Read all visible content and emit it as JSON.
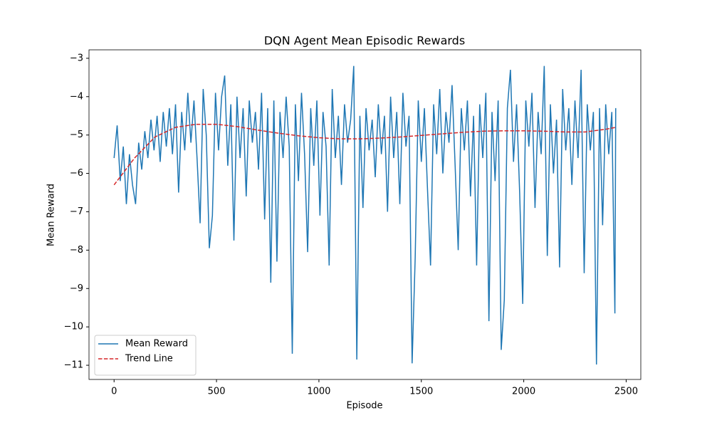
{
  "chart_data": {
    "type": "line",
    "title": "DQN Agent Mean Episodic Rewards",
    "x_label": "Episode",
    "y_label": "Mean Reward",
    "xlim": [
      -122.45,
      2571.45
    ],
    "ylim": [
      -11.37,
      -2.78
    ],
    "xticks": [
      0,
      500,
      1000,
      1500,
      2000,
      2500
    ],
    "yticks": [
      {
        "value": -3,
        "label": "−3"
      },
      {
        "value": -4,
        "label": "−4"
      },
      {
        "value": -5,
        "label": "−5"
      },
      {
        "value": -6,
        "label": "−6"
      },
      {
        "value": -7,
        "label": "−7"
      },
      {
        "value": -8,
        "label": "−8"
      },
      {
        "value": -9,
        "label": "−9"
      },
      {
        "value": -10,
        "label": "−10"
      },
      {
        "value": -11,
        "label": "−11"
      }
    ],
    "legend": "lower left",
    "series": [
      {
        "name": "Mean Reward",
        "color": "#1f77b4",
        "dash": "solid",
        "x": [
          0,
          15,
          30,
          45,
          60,
          75,
          90,
          105,
          120,
          135,
          150,
          165,
          180,
          195,
          210,
          225,
          240,
          255,
          270,
          285,
          300,
          315,
          330,
          345,
          360,
          375,
          390,
          405,
          420,
          435,
          450,
          465,
          480,
          495,
          510,
          525,
          540,
          555,
          570,
          585,
          600,
          615,
          630,
          645,
          660,
          675,
          690,
          705,
          720,
          735,
          750,
          765,
          780,
          795,
          810,
          825,
          840,
          855,
          870,
          885,
          900,
          915,
          930,
          945,
          960,
          975,
          990,
          1005,
          1020,
          1035,
          1050,
          1065,
          1080,
          1095,
          1110,
          1125,
          1140,
          1155,
          1170,
          1185,
          1200,
          1215,
          1230,
          1245,
          1260,
          1275,
          1290,
          1305,
          1320,
          1335,
          1350,
          1365,
          1380,
          1395,
          1410,
          1425,
          1440,
          1455,
          1470,
          1485,
          1500,
          1515,
          1530,
          1545,
          1560,
          1575,
          1590,
          1605,
          1620,
          1635,
          1650,
          1665,
          1680,
          1695,
          1710,
          1725,
          1740,
          1755,
          1770,
          1785,
          1800,
          1815,
          1830,
          1845,
          1860,
          1875,
          1890,
          1905,
          1920,
          1935,
          1950,
          1965,
          1980,
          1995,
          2010,
          2025,
          2040,
          2055,
          2070,
          2085,
          2100,
          2115,
          2130,
          2145,
          2160,
          2175,
          2190,
          2205,
          2220,
          2235,
          2250,
          2265,
          2280,
          2295,
          2310,
          2325,
          2340,
          2355,
          2370,
          2385,
          2400,
          2415,
          2430,
          2445,
          2449
        ],
        "values": [
          -5.6,
          -4.75,
          -6.2,
          -5.3,
          -6.8,
          -5.5,
          -6.3,
          -6.8,
          -5.2,
          -5.9,
          -4.9,
          -5.6,
          -4.6,
          -5.4,
          -4.5,
          -5.7,
          -4.4,
          -5.3,
          -4.3,
          -5.5,
          -4.2,
          -6.5,
          -4.4,
          -5.4,
          -3.9,
          -5.2,
          -4.1,
          -5.6,
          -7.3,
          -3.8,
          -5.0,
          -7.95,
          -7.1,
          -3.9,
          -5.4,
          -4.0,
          -3.45,
          -5.8,
          -4.2,
          -7.75,
          -4.0,
          -5.6,
          -4.3,
          -6.6,
          -4.1,
          -5.2,
          -4.4,
          -5.9,
          -3.9,
          -7.2,
          -4.3,
          -8.85,
          -4.1,
          -8.3,
          -4.4,
          -5.6,
          -4.0,
          -5.3,
          -10.7,
          -4.2,
          -6.2,
          -3.9,
          -5.5,
          -8.05,
          -4.3,
          -5.8,
          -4.1,
          -7.1,
          -4.4,
          -5.3,
          -8.4,
          -3.8,
          -5.6,
          -4.5,
          -6.3,
          -4.2,
          -5.2,
          -4.6,
          -3.2,
          -10.85,
          -4.5,
          -6.9,
          -4.3,
          -5.4,
          -4.6,
          -6.1,
          -4.2,
          -5.5,
          -4.5,
          -7.0,
          -4.0,
          -5.6,
          -4.4,
          -6.8,
          -3.9,
          -5.3,
          -4.5,
          -10.95,
          -8.2,
          -4.1,
          -5.7,
          -4.3,
          -6.4,
          -8.4,
          -4.2,
          -5.5,
          -3.8,
          -6.0,
          -4.4,
          -5.2,
          -3.7,
          -5.8,
          -8.0,
          -4.3,
          -5.4,
          -4.1,
          -6.6,
          -4.5,
          -8.4,
          -4.2,
          -5.6,
          -3.9,
          -9.85,
          -4.4,
          -6.2,
          -4.1,
          -10.6,
          -9.3,
          -4.3,
          -3.3,
          -5.7,
          -4.2,
          -6.5,
          -9.4,
          -4.1,
          -5.3,
          -3.9,
          -6.9,
          -4.4,
          -5.5,
          -3.2,
          -8.15,
          -4.2,
          -6.0,
          -4.6,
          -8.45,
          -3.8,
          -5.4,
          -4.3,
          -6.3,
          -4.1,
          -5.6,
          -3.3,
          -8.6,
          -4.2,
          -5.4,
          -4.4,
          -10.98,
          -4.3,
          -7.35,
          -4.2,
          -5.5,
          -4.4,
          -9.65,
          -4.3
        ]
      },
      {
        "name": "Trend Line",
        "color": "#d62728",
        "dash": "dashed",
        "x": [
          0,
          100,
          200,
          300,
          400,
          500,
          600,
          700,
          800,
          900,
          1000,
          1100,
          1200,
          1300,
          1400,
          1500,
          1600,
          1700,
          1800,
          1900,
          2000,
          2100,
          2200,
          2300,
          2400,
          2449
        ],
        "values": [
          -6.3,
          -5.6,
          -5.05,
          -4.8,
          -4.72,
          -4.72,
          -4.78,
          -4.87,
          -4.95,
          -5.02,
          -5.07,
          -5.1,
          -5.1,
          -5.08,
          -5.05,
          -5.01,
          -4.97,
          -4.93,
          -4.9,
          -4.89,
          -4.89,
          -4.9,
          -4.92,
          -4.92,
          -4.85,
          -4.8
        ]
      }
    ]
  }
}
